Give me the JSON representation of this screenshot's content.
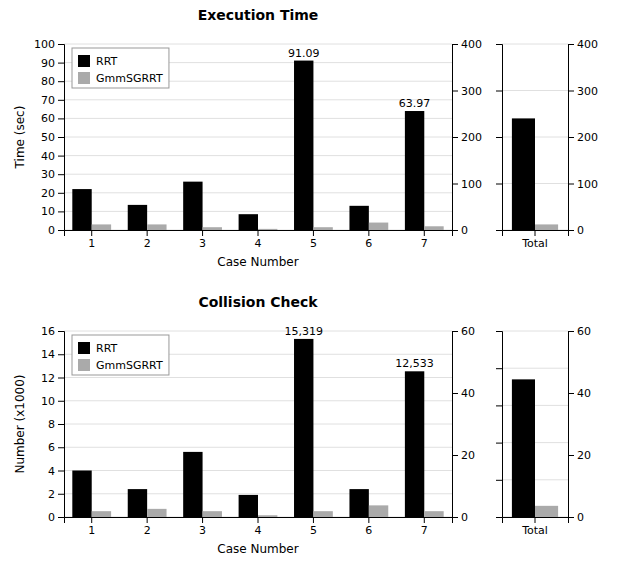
{
  "chart_data": [
    {
      "type": "bar",
      "title": "Execution Time",
      "xlabel": "Case Number",
      "ylabel": "Time (sec)",
      "categories": [
        "1",
        "2",
        "3",
        "4",
        "5",
        "6",
        "7"
      ],
      "series": [
        {
          "name": "RRT",
          "color": "#000000",
          "values": [
            22.0,
            13.5,
            26.0,
            8.5,
            91.09,
            13.0,
            63.97
          ]
        },
        {
          "name": "GmmSGRRT",
          "color": "#aaaaaa",
          "values": [
            3.0,
            3.0,
            1.5,
            0.6,
            1.5,
            4.0,
            2.0
          ]
        }
      ],
      "ylim": [
        0,
        100
      ],
      "yticks": [
        0,
        10,
        20,
        30,
        40,
        50,
        60,
        70,
        80,
        90,
        100
      ],
      "y2lim": [
        0,
        400
      ],
      "y2ticks": [
        0,
        100,
        200,
        300,
        400
      ],
      "grid": true,
      "legend": "upper left",
      "annotations": [
        {
          "text": "91.09",
          "category": "5",
          "series": "RRT"
        },
        {
          "text": "63.97",
          "category": "7",
          "series": "RRT"
        }
      ]
    },
    {
      "type": "bar",
      "categories": [
        "Total"
      ],
      "series": [
        {
          "name": "RRT",
          "color": "#000000",
          "values": [
            24.0
          ]
        },
        {
          "name": "GmmSGRRT",
          "color": "#aaaaaa",
          "values": [
            1.2
          ]
        }
      ],
      "ylim": [
        0,
        40
      ],
      "yticks": [
        0,
        10,
        20,
        30,
        40
      ],
      "y2lim": [
        0,
        400
      ],
      "y2ticks": [
        0,
        100,
        200,
        300,
        400
      ],
      "grid": true,
      "tick_labels": "x"
    },
    {
      "type": "bar",
      "title": "Collision Check",
      "xlabel": "Case Number",
      "ylabel": "Number (x1000)",
      "categories": [
        "1",
        "2",
        "3",
        "4",
        "5",
        "6",
        "7"
      ],
      "series": [
        {
          "name": "RRT",
          "color": "#000000",
          "values": [
            4.0,
            2.4,
            5.6,
            1.9,
            15.319,
            2.4,
            12.533
          ]
        },
        {
          "name": "GmmSGRRT",
          "color": "#aaaaaa",
          "values": [
            0.5,
            0.7,
            0.5,
            0.15,
            0.5,
            1.0,
            0.5
          ]
        }
      ],
      "ylim": [
        0,
        16
      ],
      "yticks": [
        0,
        2,
        4,
        6,
        8,
        10,
        12,
        14,
        16
      ],
      "y2lim": [
        0,
        60
      ],
      "y2ticks": [
        0,
        20,
        40,
        60
      ],
      "grid": true,
      "legend": "upper left",
      "annotations": [
        {
          "text": "15,319",
          "category": "5",
          "series": "RRT"
        },
        {
          "text": "12,533",
          "category": "7",
          "series": "RRT"
        }
      ]
    },
    {
      "type": "bar",
      "categories": [
        "Total"
      ],
      "series": [
        {
          "name": "RRT",
          "color": "#000000",
          "values": [
            7.4
          ]
        },
        {
          "name": "GmmSGRRT",
          "color": "#aaaaaa",
          "values": [
            0.6
          ]
        }
      ],
      "ylim": [
        0,
        10
      ],
      "yticks": [
        0,
        2,
        4,
        6,
        8,
        10
      ],
      "y2lim": [
        0,
        60
      ],
      "y2ticks": [
        0,
        20,
        40,
        60
      ],
      "grid": true,
      "tick_labels": "x"
    }
  ]
}
